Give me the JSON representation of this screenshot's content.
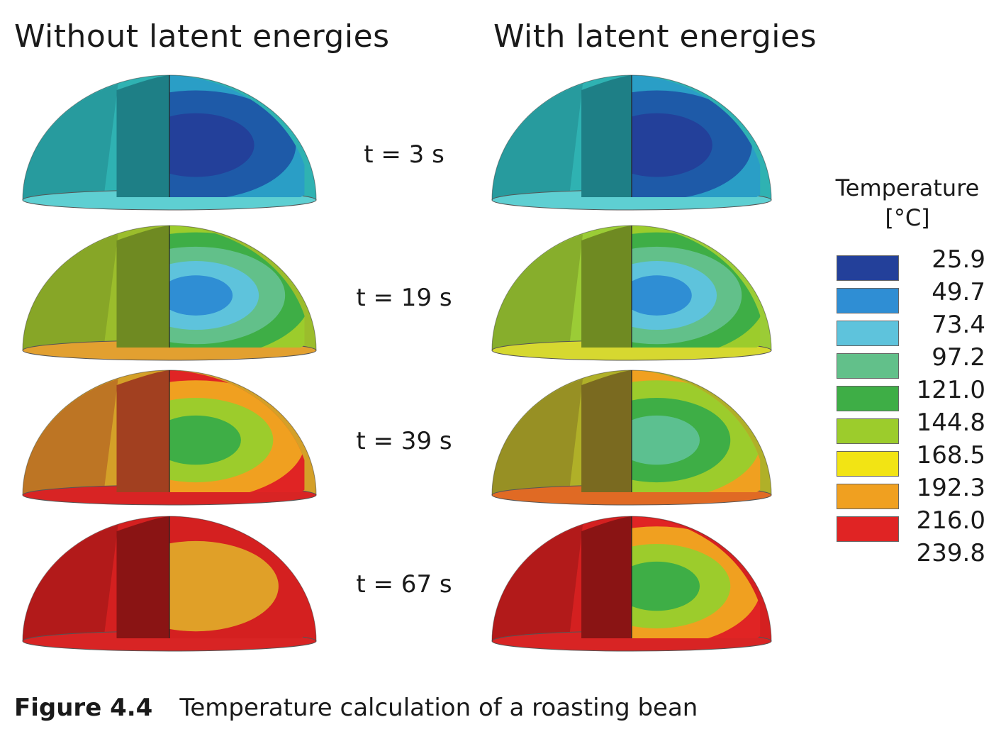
{
  "columns": {
    "left_title": "Without latent energies",
    "right_title": "With latent energies"
  },
  "times": [
    "t = 3 s",
    "t = 19 s",
    "t = 39 s",
    "t = 67 s"
  ],
  "legend": {
    "title_line1": "Temperature",
    "title_line2": "[°C]",
    "levels": [
      {
        "value": "25.9",
        "color": "#23409a"
      },
      {
        "value": "49.7",
        "color": "#2f8ed4"
      },
      {
        "value": "73.4",
        "color": "#5ec3dc"
      },
      {
        "value": "97.2",
        "color": "#62c08a"
      },
      {
        "value": "121.0",
        "color": "#3eae46"
      },
      {
        "value": "144.8",
        "color": "#9ccc2c"
      },
      {
        "value": "168.5",
        "color": "#f2e414"
      },
      {
        "value": "192.3",
        "color": "#f0a020"
      },
      {
        "value": "216.0",
        "color": "#e02424"
      },
      {
        "value": "239.8",
        "color": ""
      }
    ]
  },
  "simulation": {
    "without_latent": [
      {
        "time": "t = 3 s",
        "shell": "#2fb2b2",
        "shell_dark": "#1e7f86",
        "base": "#5ecfd2",
        "bands": [
          "#2a9ec6",
          "#1e5aa8",
          "#23409a"
        ],
        "inner": "#2a4aa8"
      },
      {
        "time": "t = 19 s",
        "shell": "#9bbd2c",
        "shell_dark": "#6f8a22",
        "base": "#e2a030",
        "bands": [
          "#9ccc2c",
          "#3eae46",
          "#62c08a",
          "#5ec3dc",
          "#2f8ed4"
        ],
        "inner": "#2f8ed4"
      },
      {
        "time": "t = 39 s",
        "shell": "#d4a028",
        "shell_dark": "#a24020",
        "base": "#d82424",
        "bands": [
          "#e02424",
          "#f0a020",
          "#9ccc2c",
          "#3eae46"
        ],
        "inner": "#3eae46"
      },
      {
        "time": "t = 67 s",
        "shell": "#d42020",
        "shell_dark": "#8a1414",
        "base": "#d82424",
        "bands": [
          "#d42020",
          "#e0a028"
        ],
        "inner": "#e0a028"
      }
    ],
    "with_latent": [
      {
        "time": "t = 3 s",
        "shell": "#2fb2b2",
        "shell_dark": "#1e7f86",
        "base": "#5ecfd2",
        "bands": [
          "#2a9ec6",
          "#1e5aa8",
          "#23409a"
        ],
        "inner": "#2a4aa8"
      },
      {
        "time": "t = 19 s",
        "shell": "#9bcc36",
        "shell_dark": "#6f8a22",
        "base": "#d6d830",
        "bands": [
          "#9ccc2c",
          "#3eae46",
          "#62c08a",
          "#5ec3dc",
          "#2f8ed4"
        ],
        "inner": "#2f8ed4"
      },
      {
        "time": "t = 39 s",
        "shell": "#b0b028",
        "shell_dark": "#7a6a20",
        "base": "#e06a24",
        "bands": [
          "#f0a020",
          "#9ccc2c",
          "#3eae46",
          "#5cc090"
        ],
        "inner": "#5cc090"
      },
      {
        "time": "t = 67 s",
        "shell": "#d42020",
        "shell_dark": "#8a1414",
        "base": "#d82424",
        "bands": [
          "#e02424",
          "#f0a020",
          "#9ccc2c",
          "#3eae46"
        ],
        "inner": "#3eae46"
      }
    ]
  },
  "caption": {
    "figure_number": "Figure 4.4",
    "text": "Temperature calculation of a roasting bean"
  }
}
